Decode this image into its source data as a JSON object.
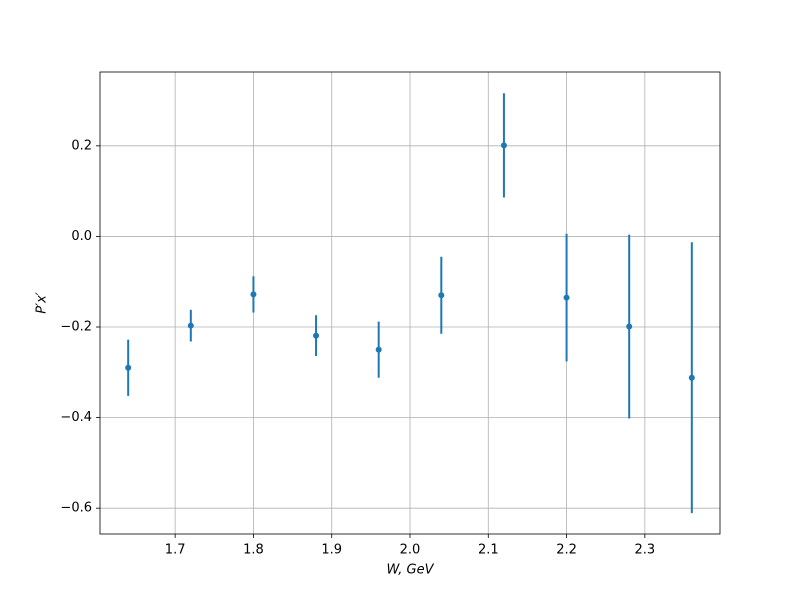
{
  "chart_data": {
    "type": "errorbar",
    "xlabel": "W, GeV",
    "ylabel": "P′x′",
    "x": [
      1.64,
      1.72,
      1.8,
      1.88,
      1.96,
      2.04,
      2.12,
      2.2,
      2.28,
      2.36
    ],
    "values": [
      -0.29,
      -0.197,
      -0.128,
      -0.219,
      -0.25,
      -0.13,
      0.201,
      -0.135,
      -0.199,
      -0.312
    ],
    "errors": [
      0.062,
      0.035,
      0.04,
      0.045,
      0.062,
      0.085,
      0.115,
      0.141,
      0.203,
      0.299
    ],
    "color": "#1f77b4",
    "xlim": [
      1.604,
      2.396
    ],
    "ylim": [
      -0.657,
      0.363
    ],
    "xticks": [
      1.7,
      1.8,
      1.9,
      {
        "value": 2.0,
        "label": "2.0"
      },
      2.1,
      2.2,
      2.3
    ],
    "yticks": [
      {
        "value": -0.6,
        "label": "−0.6"
      },
      {
        "value": -0.4,
        "label": "−0.4"
      },
      {
        "value": -0.2,
        "label": "−0.2"
      },
      {
        "value": 0,
        "label": "0.0"
      },
      0.2
    ],
    "grid": true
  }
}
